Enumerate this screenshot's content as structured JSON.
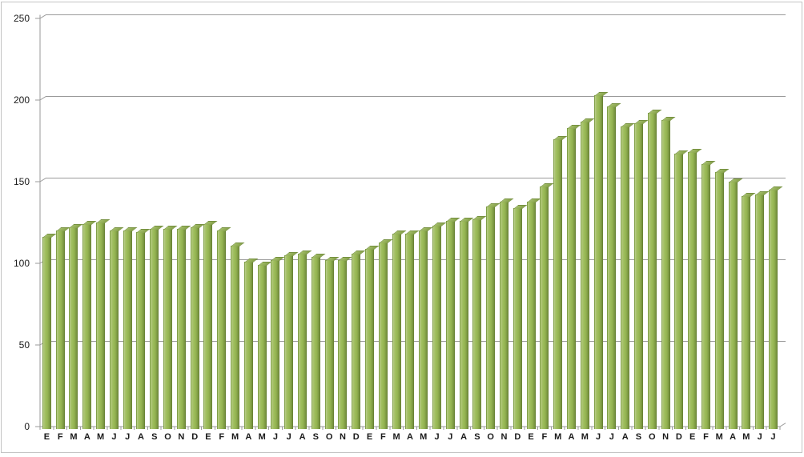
{
  "chart_data": {
    "type": "bar",
    "title": "",
    "x_labels": [
      "E",
      "F",
      "M",
      "A",
      "M",
      "J",
      "J",
      "A",
      "S",
      "O",
      "N",
      "D",
      "E",
      "F",
      "M",
      "A",
      "M",
      "J",
      "J",
      "A",
      "S",
      "O",
      "N",
      "D",
      "E",
      "F",
      "M",
      "A",
      "M",
      "J",
      "J",
      "A",
      "S",
      "O",
      "N",
      "D",
      "E",
      "F",
      "M",
      "A",
      "M",
      "J",
      "J",
      "A",
      "S",
      "O",
      "N",
      "D",
      "E",
      "F",
      "M",
      "A",
      "M",
      "J",
      "J"
    ],
    "values": [
      116,
      120,
      122,
      124,
      125,
      120,
      120,
      119,
      121,
      121,
      121,
      122,
      124,
      120,
      111,
      101,
      99,
      102,
      105,
      106,
      104,
      102,
      102,
      106,
      109,
      113,
      118,
      118,
      120,
      123,
      126,
      126,
      127,
      135,
      138,
      134,
      138,
      147,
      176,
      183,
      187,
      203,
      196,
      184,
      186,
      192,
      188,
      167,
      168,
      161,
      156,
      150,
      141,
      142,
      145
    ],
    "y_ticks": [
      0,
      50,
      100,
      150,
      200,
      250
    ],
    "ylim": [
      0,
      250
    ],
    "xlabel": "",
    "ylabel": "",
    "legend": "none",
    "grid": "horizontal",
    "style": "excel-3d-column",
    "colors": {
      "bar_fill": "#9BBB59",
      "bar_border": "#71893F",
      "gridline": "#9A9A9A",
      "axis": "#9A9A9A",
      "text": "#1A1A1A",
      "frame_border": "#C3C3C3",
      "background": "#FFFFFF"
    }
  }
}
